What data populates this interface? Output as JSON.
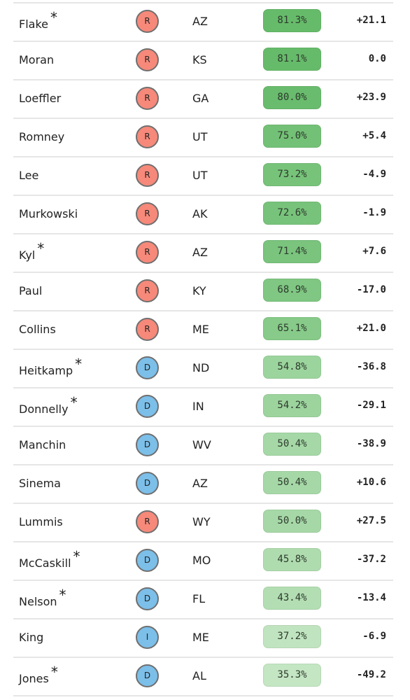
{
  "rows": [
    {
      "name": "Flake",
      "asterisk": true,
      "party": "R",
      "state": "AZ",
      "pct": "81.3%",
      "pct_value": 81.3,
      "margin": "+21.1"
    },
    {
      "name": "Moran",
      "asterisk": false,
      "party": "R",
      "state": "KS",
      "pct": "81.1%",
      "pct_value": 81.1,
      "margin": "0.0"
    },
    {
      "name": "Loeffler",
      "asterisk": false,
      "party": "R",
      "state": "GA",
      "pct": "80.0%",
      "pct_value": 80.0,
      "margin": "+23.9"
    },
    {
      "name": "Romney",
      "asterisk": false,
      "party": "R",
      "state": "UT",
      "pct": "75.0%",
      "pct_value": 75.0,
      "margin": "+5.4"
    },
    {
      "name": "Lee",
      "asterisk": false,
      "party": "R",
      "state": "UT",
      "pct": "73.2%",
      "pct_value": 73.2,
      "margin": "-4.9"
    },
    {
      "name": "Murkowski",
      "asterisk": false,
      "party": "R",
      "state": "AK",
      "pct": "72.6%",
      "pct_value": 72.6,
      "margin": "-1.9"
    },
    {
      "name": "Kyl",
      "asterisk": true,
      "party": "R",
      "state": "AZ",
      "pct": "71.4%",
      "pct_value": 71.4,
      "margin": "+7.6"
    },
    {
      "name": "Paul",
      "asterisk": false,
      "party": "R",
      "state": "KY",
      "pct": "68.9%",
      "pct_value": 68.9,
      "margin": "-17.0"
    },
    {
      "name": "Collins",
      "asterisk": false,
      "party": "R",
      "state": "ME",
      "pct": "65.1%",
      "pct_value": 65.1,
      "margin": "+21.0"
    },
    {
      "name": "Heitkamp",
      "asterisk": true,
      "party": "D",
      "state": "ND",
      "pct": "54.8%",
      "pct_value": 54.8,
      "margin": "-36.8"
    },
    {
      "name": "Donnelly",
      "asterisk": true,
      "party": "D",
      "state": "IN",
      "pct": "54.2%",
      "pct_value": 54.2,
      "margin": "-29.1"
    },
    {
      "name": "Manchin",
      "asterisk": false,
      "party": "D",
      "state": "WV",
      "pct": "50.4%",
      "pct_value": 50.4,
      "margin": "-38.9"
    },
    {
      "name": "Sinema",
      "asterisk": false,
      "party": "D",
      "state": "AZ",
      "pct": "50.4%",
      "pct_value": 50.4,
      "margin": "+10.6"
    },
    {
      "name": "Lummis",
      "asterisk": false,
      "party": "R",
      "state": "WY",
      "pct": "50.0%",
      "pct_value": 50.0,
      "margin": "+27.5"
    },
    {
      "name": "McCaskill",
      "asterisk": true,
      "party": "D",
      "state": "MO",
      "pct": "45.8%",
      "pct_value": 45.8,
      "margin": "-37.2"
    },
    {
      "name": "Nelson",
      "asterisk": true,
      "party": "D",
      "state": "FL",
      "pct": "43.4%",
      "pct_value": 43.4,
      "margin": "-13.4"
    },
    {
      "name": "King",
      "asterisk": false,
      "party": "I",
      "state": "ME",
      "pct": "37.2%",
      "pct_value": 37.2,
      "margin": "-6.9"
    },
    {
      "name": "Jones",
      "asterisk": true,
      "party": "D",
      "state": "AL",
      "pct": "35.3%",
      "pct_value": 35.3,
      "margin": "-49.2"
    }
  ],
  "asterisk_symbol": "*",
  "colors": {
    "republican": "#f6897a",
    "democrat": "#7cbfe9",
    "independent": "#7cbfe9",
    "pct_high": "#66bb6a",
    "pct_low": "#c4e6c3"
  }
}
